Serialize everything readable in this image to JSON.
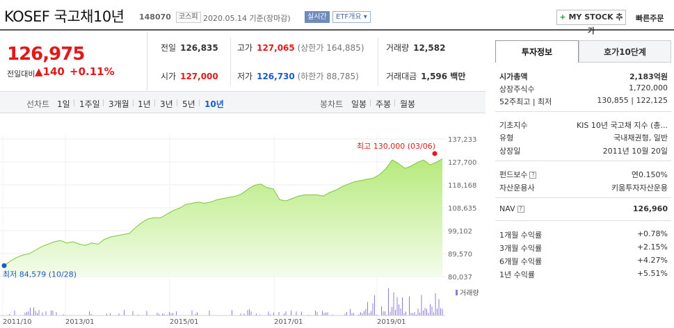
{
  "header": {
    "title": "KOSEF 국고채10년",
    "code": "148070",
    "market_badge": "코스피",
    "date": "2020.05.14 기준(장마감)",
    "realtime_label": "실시간",
    "etf_label": "ETF개요",
    "mystock_label": "MY STOCK 추가",
    "quick_order_label": "빠른주문"
  },
  "price": {
    "current": "126,975",
    "change_label": "전일대비",
    "change_value": "▲140",
    "change_pct": "+0.11%"
  },
  "stats": {
    "prev_close_label": "전일",
    "prev_close": "126,835",
    "high_label": "고가",
    "high": "127,065",
    "upper_limit": "(상한가 164,885)",
    "volume_label": "거래량",
    "volume": "12,582",
    "open_label": "시가",
    "open": "127,000",
    "low_label": "저가",
    "low": "126,730",
    "lower_limit": "(하한가 88,785)",
    "amount_label": "거래대금",
    "amount": "1,596 백만"
  },
  "tabs": {
    "line_chart": "선차트",
    "periods": [
      "1일",
      "1주일",
      "3개월",
      "1년",
      "3년",
      "5년",
      "10년"
    ],
    "candle_chart": "봉차트",
    "candle_periods": [
      "일봉",
      "주봉",
      "월봉"
    ]
  },
  "chart_data": {
    "type": "area",
    "y_ticks": [
      "137,233",
      "127,700",
      "118,168",
      "108,635",
      "99,102",
      "89,570",
      "80,037"
    ],
    "ylim": [
      80037,
      137233
    ],
    "x_ticks": [
      "2011/10",
      "2013/01",
      "2015/01",
      "2017/01",
      "2019/01"
    ],
    "max_label": "최고 130,000 (03/06)",
    "min_label": "최저 84,579 (10/28)",
    "volume_label": "거래량",
    "series": [
      {
        "values": [
          84579,
          86500,
          88000,
          89000,
          89500,
          91000,
          92500,
          93500,
          94500,
          95000,
          94000,
          94500,
          93500,
          93000,
          94000,
          93500,
          95500,
          96500,
          97000,
          97500,
          98000,
          100500,
          102500,
          104000,
          104500,
          104500,
          106000,
          107500,
          108500,
          110000,
          110500,
          111000,
          110500,
          111000,
          112000,
          112500,
          113000,
          113500,
          114500,
          116500,
          118000,
          118500,
          117000,
          116500,
          112000,
          111500,
          112500,
          113500,
          114000,
          114000,
          114000,
          113500,
          115000,
          116000,
          117500,
          118500,
          119500,
          120000,
          120500,
          121000,
          122500,
          125000,
          128500,
          127000,
          125000,
          126000,
          127500,
          128500,
          126500,
          127500,
          129000
        ]
      }
    ],
    "color": "#8bd14a"
  },
  "right_panel": {
    "tab_active": "투자정보",
    "tab_inactive": "호가10단계",
    "rows1": [
      {
        "k": "시가총액",
        "v": "2,183억원",
        "bold": true
      },
      {
        "k": "상장주식수",
        "v": "1,720,000"
      },
      {
        "k": "52주최고 | 최저",
        "v": "130,855 | 122,125"
      }
    ],
    "rows2": [
      {
        "k": "기초지수",
        "v": "KIS 10년 국고채 지수 (총..."
      },
      {
        "k": "유형",
        "v": "국내채권형, 일반"
      },
      {
        "k": "상장일",
        "v": "2011년 10월 20일"
      }
    ],
    "rows3": [
      {
        "k": "펀드보수",
        "v": "연0.150%"
      },
      {
        "k": "자산운용사",
        "v": "키움투자자산운용"
      }
    ],
    "nav_label": "NAV",
    "nav_value": "126,960",
    "returns": [
      {
        "k": "1개월 수익률",
        "v": "+0.78%"
      },
      {
        "k": "3개월 수익률",
        "v": "+2.15%"
      },
      {
        "k": "6개월 수익률",
        "v": "+4.27%"
      },
      {
        "k": "1년 수익률",
        "v": "+5.51%"
      }
    ]
  }
}
